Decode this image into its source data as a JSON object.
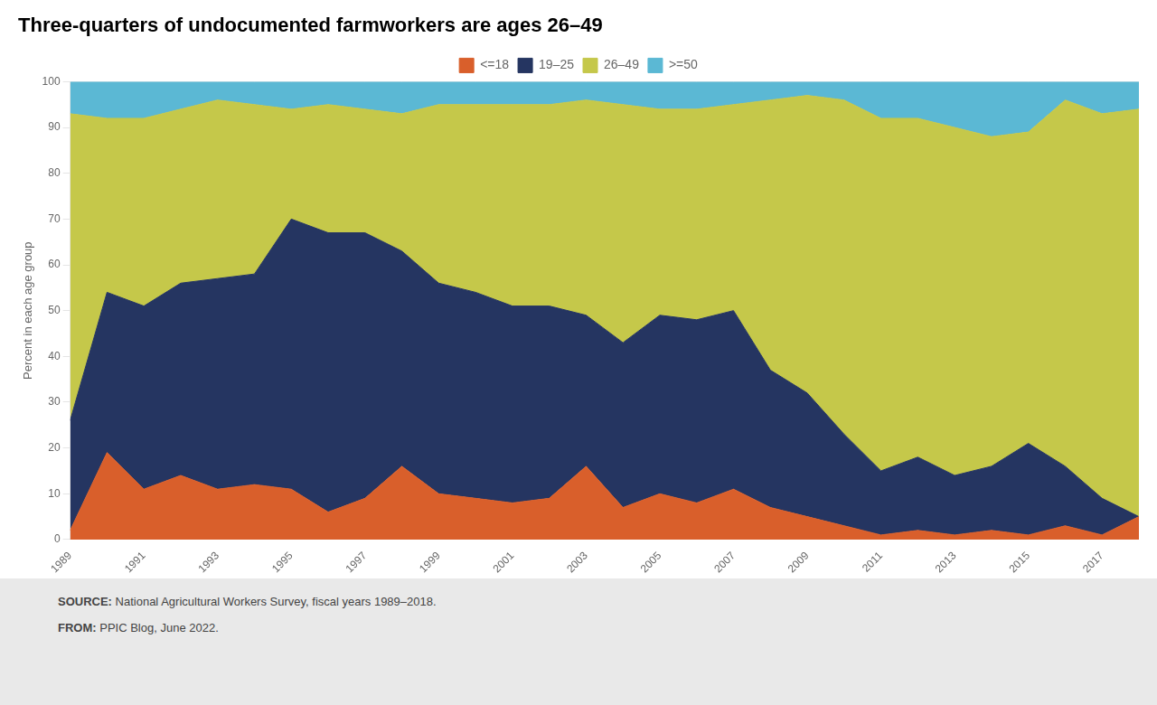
{
  "chart_data": {
    "type": "area",
    "stacked": true,
    "title": "Three-quarters of undocumented farmworkers are ages 26–49",
    "y_label": "Percent in each age group",
    "x": [
      1989,
      1990,
      1991,
      1992,
      1993,
      1994,
      1995,
      1996,
      1997,
      1998,
      1999,
      2000,
      2001,
      2002,
      2003,
      2004,
      2005,
      2006,
      2007,
      2008,
      2009,
      2010,
      2011,
      2012,
      2013,
      2014,
      2015,
      2016,
      2017,
      2018
    ],
    "series": [
      {
        "name": "<=18",
        "color": "#d95f2b",
        "values": [
          2,
          19,
          11,
          14,
          11,
          12,
          11,
          6,
          9,
          16,
          10,
          9,
          8,
          9,
          16,
          7,
          10,
          8,
          11,
          7,
          5,
          3,
          1,
          2,
          1,
          2,
          1,
          3,
          1,
          5
        ]
      },
      {
        "name": "19–25",
        "color": "#253561",
        "values": [
          24,
          35,
          40,
          42,
          46,
          46,
          59,
          61,
          58,
          47,
          46,
          45,
          43,
          42,
          33,
          36,
          39,
          40,
          39,
          30,
          27,
          20,
          14,
          16,
          13,
          14,
          20,
          13,
          8,
          0
        ]
      },
      {
        "name": "26–49",
        "color": "#c5c84a",
        "values": [
          67,
          38,
          41,
          38,
          39,
          37,
          24,
          28,
          27,
          30,
          39,
          41,
          44,
          44,
          47,
          52,
          45,
          46,
          45,
          59,
          65,
          73,
          77,
          74,
          76,
          72,
          68,
          80,
          84,
          89
        ]
      },
      {
        "name": ">=50",
        "color": "#5bb8d4",
        "values": [
          7,
          8,
          8,
          6,
          4,
          5,
          6,
          5,
          6,
          7,
          5,
          5,
          5,
          5,
          4,
          5,
          6,
          6,
          5,
          4,
          3,
          4,
          8,
          8,
          10,
          12,
          11,
          4,
          7,
          6
        ]
      }
    ],
    "xlim": [
      1989,
      2018
    ],
    "xticks": [
      1989,
      1991,
      1993,
      1995,
      1997,
      1999,
      2001,
      2003,
      2005,
      2007,
      2009,
      2011,
      2013,
      2015,
      2017
    ],
    "ylim": [
      0,
      100
    ],
    "yticks": [
      0,
      10,
      20,
      30,
      40,
      50,
      60,
      70,
      80,
      90,
      100
    ],
    "grid": "y",
    "legend": "top",
    "annotations": [
      "SOURCE: National Agricultural Workers Survey, fiscal years 1989–2018.",
      "FROM: PPIC Blog, June 2022."
    ]
  }
}
